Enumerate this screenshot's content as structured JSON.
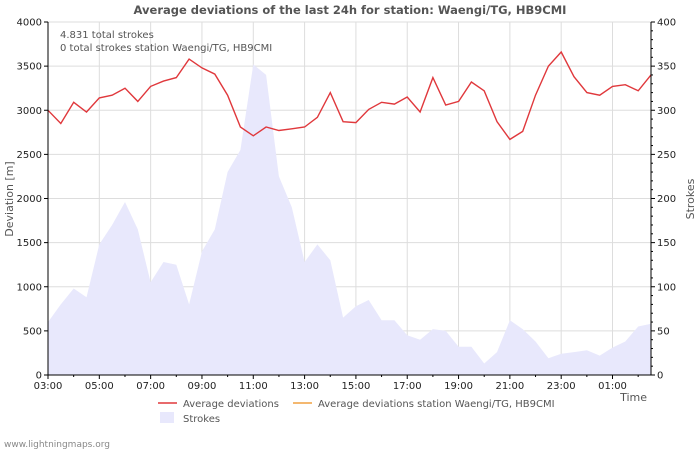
{
  "colors": {
    "deviation_line": "#e0383c",
    "station_line": "#f0a040",
    "strokes_fill": "#e8e8fc",
    "grid": "#dddddd",
    "text": "#555555"
  },
  "footer": "www.lightningmaps.org",
  "chart_data": {
    "type": "line",
    "title": "Average deviations of the last 24h for station: Waengi/TG, HB9CMI",
    "annotations": [
      "4.831 total strokes",
      "0 total strokes station Waengi/TG, HB9CMI"
    ],
    "xlabel": "Time",
    "ylabel": "Deviation [m]",
    "y2label": "Strokes",
    "x_range_hours": [
      3,
      26.5
    ],
    "x_ticks": [
      {
        "label": "03:00",
        "hour": 3
      },
      {
        "label": "05:00",
        "hour": 5
      },
      {
        "label": "07:00",
        "hour": 7
      },
      {
        "label": "09:00",
        "hour": 9
      },
      {
        "label": "11:00",
        "hour": 11
      },
      {
        "label": "13:00",
        "hour": 13
      },
      {
        "label": "15:00",
        "hour": 15
      },
      {
        "label": "17:00",
        "hour": 17
      },
      {
        "label": "19:00",
        "hour": 19
      },
      {
        "label": "21:00",
        "hour": 21
      },
      {
        "label": "23:00",
        "hour": 23
      },
      {
        "label": "01:00",
        "hour": 25
      }
    ],
    "ylim": [
      0,
      4000
    ],
    "y_ticks": [
      0,
      500,
      1000,
      1500,
      2000,
      2500,
      3000,
      3500,
      4000
    ],
    "y2lim": [
      0,
      400
    ],
    "y2_ticks": [
      0,
      50,
      100,
      150,
      200,
      250,
      300,
      350,
      400
    ],
    "legend": [
      "Average deviations",
      "Average deviations station Waengi/TG, HB9CMI",
      "Strokes"
    ],
    "x_hours": [
      3,
      3.5,
      4,
      4.5,
      5,
      5.5,
      6,
      6.5,
      7,
      7.5,
      8,
      8.5,
      9,
      9.5,
      10,
      10.5,
      11,
      11.5,
      12,
      12.5,
      13,
      13.5,
      14,
      14.5,
      15,
      15.5,
      16,
      16.5,
      17,
      17.5,
      18,
      18.5,
      19,
      19.5,
      20,
      20.5,
      21,
      21.5,
      22,
      22.5,
      23,
      23.5,
      24,
      24.5,
      25,
      25.5,
      26,
      26.5
    ],
    "series": [
      {
        "name": "Average deviations",
        "axis": "left",
        "values": [
          3000,
          2850,
          3090,
          2980,
          3140,
          3170,
          3250,
          3100,
          3270,
          3330,
          3370,
          3580,
          3480,
          3410,
          3170,
          2810,
          2710,
          2810,
          2770,
          2790,
          2810,
          2920,
          3200,
          2870,
          2860,
          3010,
          3090,
          3070,
          3150,
          2980,
          3370,
          3060,
          3100,
          3320,
          3220,
          2870,
          2670,
          2760,
          3170,
          3500,
          3660,
          3380,
          3200,
          3170,
          3270,
          3290,
          3220,
          3400
        ]
      },
      {
        "name": "Strokes",
        "axis": "right",
        "values": [
          60,
          80,
          98,
          88,
          148,
          170,
          196,
          165,
          105,
          128,
          125,
          80,
          140,
          165,
          230,
          255,
          352,
          340,
          225,
          190,
          128,
          148,
          130,
          65,
          78,
          85,
          62,
          62,
          45,
          40,
          52,
          50,
          32,
          32,
          13,
          26,
          62,
          52,
          38,
          19,
          24,
          26,
          28,
          22,
          31,
          38,
          55,
          58
        ]
      }
    ]
  }
}
